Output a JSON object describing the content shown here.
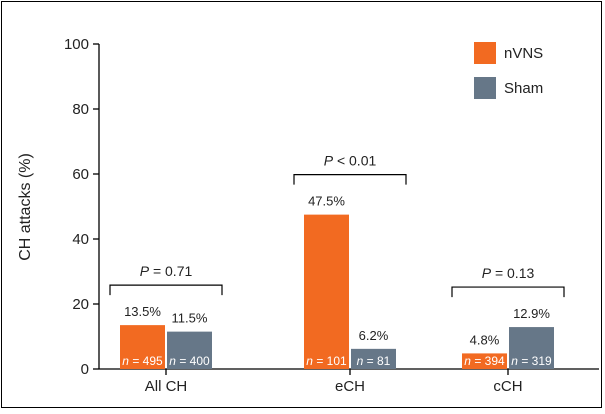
{
  "chart_data": {
    "type": "bar",
    "categories": [
      "All CH",
      "eCH",
      "cCH"
    ],
    "ylabel": "CH attacks (%)",
    "xlabel": "",
    "ylim": [
      0,
      100
    ],
    "yticks": [
      0,
      20,
      40,
      60,
      80,
      100
    ],
    "grid": false,
    "legend_position": "top-right",
    "series": [
      {
        "name": "nVNS",
        "color": "#f26a21",
        "values": [
          13.5,
          47.5,
          4.8
        ],
        "value_labels": [
          "13.5%",
          "47.5%",
          "4.8%"
        ],
        "n_labels": [
          "495",
          "101",
          "394"
        ]
      },
      {
        "name": "Sham",
        "color": "#667788",
        "values": [
          11.5,
          6.2,
          12.9
        ],
        "value_labels": [
          "11.5%",
          "6.2%",
          "12.9%"
        ],
        "n_labels": [
          "400",
          "81",
          "319"
        ]
      }
    ],
    "comparisons": [
      {
        "category": "All CH",
        "label_italic": "P",
        "label_rest": " = 0.71",
        "value": 0.71
      },
      {
        "category": "eCH",
        "label_italic": "P",
        "label_rest": " < 0.01",
        "value": 0.01
      },
      {
        "category": "cCH",
        "label_italic": "P",
        "label_rest": " = 0.13",
        "value": 0.13
      }
    ]
  }
}
